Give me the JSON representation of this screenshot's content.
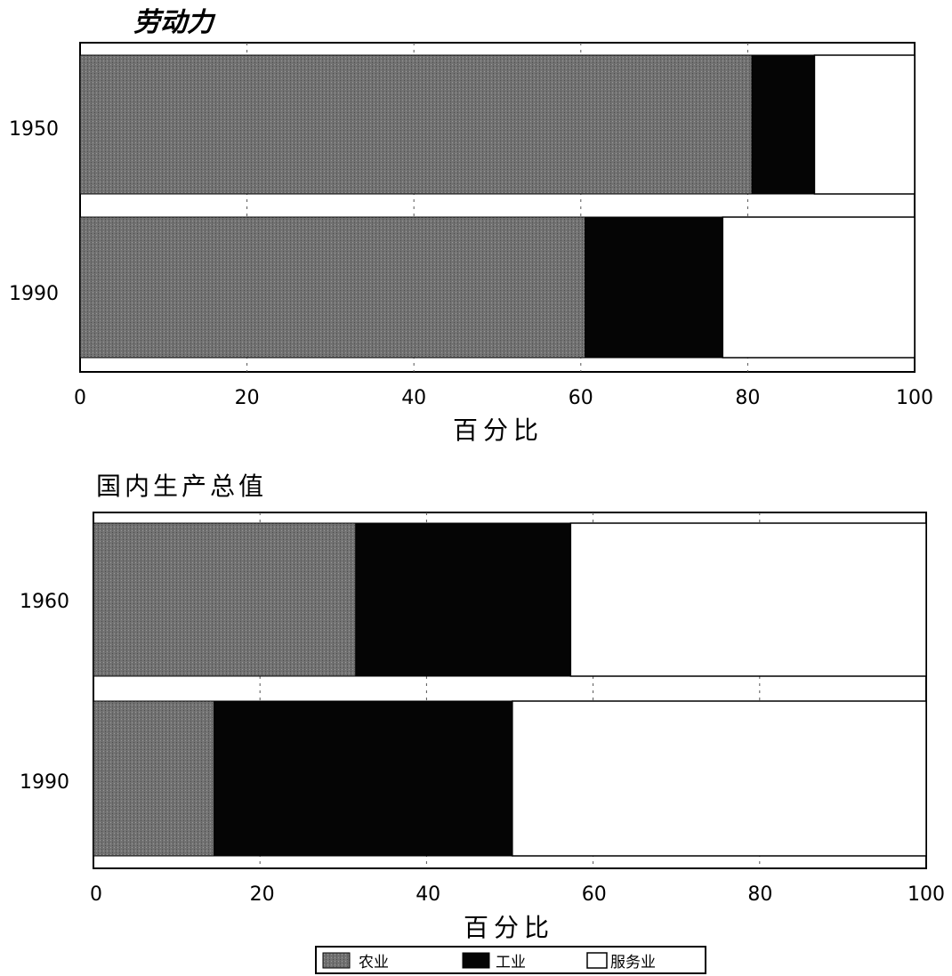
{
  "chart_data": [
    {
      "type": "bar",
      "orientation": "horizontal",
      "stacked": true,
      "title": "劳动力",
      "xlabel": "百分比",
      "ylabel": "",
      "xlim": [
        0,
        100
      ],
      "x_ticks": [
        0,
        20,
        40,
        60,
        80,
        100
      ],
      "grid": true,
      "categories": [
        "1950",
        "1990"
      ],
      "series": [
        {
          "name": "农业",
          "values": [
            80.5,
            60.5
          ]
        },
        {
          "name": "工业",
          "values": [
            7.5,
            16.5
          ]
        },
        {
          "name": "服务业",
          "values": [
            12.0,
            23.0
          ]
        }
      ]
    },
    {
      "type": "bar",
      "orientation": "horizontal",
      "stacked": true,
      "title": "国内生产总值",
      "xlabel": "百分比",
      "ylabel": "",
      "xlim": [
        0,
        100
      ],
      "x_ticks": [
        0,
        20,
        40,
        60,
        80,
        100
      ],
      "grid": true,
      "categories": [
        "1960",
        "1990"
      ],
      "series": [
        {
          "name": "农业",
          "values": [
            31.5,
            14.5
          ]
        },
        {
          "name": "工业",
          "values": [
            25.8,
            35.8
          ]
        },
        {
          "name": "服务业",
          "values": [
            42.7,
            49.7
          ]
        }
      ]
    }
  ],
  "legend": {
    "placement": "bottom-center",
    "items": [
      {
        "label": "农业",
        "color": "#6e6e6e"
      },
      {
        "label": "工业",
        "color": "#050505"
      },
      {
        "label": "服务业",
        "color": "#ffffff"
      }
    ]
  },
  "colors": {
    "agriculture": "#6e6e6e",
    "industry": "#050505",
    "services": "#ffffff"
  }
}
